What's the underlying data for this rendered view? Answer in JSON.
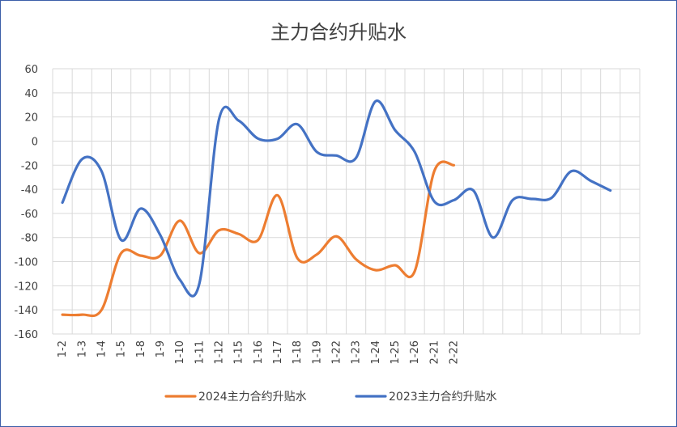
{
  "chart_data": {
    "type": "line",
    "title": "主力合约升贴水",
    "xlabel": "",
    "ylabel": "",
    "categories": [
      "1-2",
      "1-3",
      "1-4",
      "1-5",
      "1-8",
      "1-9",
      "1-10",
      "1-11",
      "1-12",
      "1-15",
      "1-16",
      "1-17",
      "1-18",
      "1-19",
      "1-22",
      "1-23",
      "1-24",
      "1-25",
      "1-26",
      "2-21",
      "2-22",
      "",
      "",
      "",
      "",
      "",
      "",
      "",
      "",
      ""
    ],
    "ylim": [
      -160,
      60
    ],
    "yticks": [
      -160,
      -140,
      -120,
      -100,
      -80,
      -60,
      -40,
      -20,
      0,
      20,
      40,
      60
    ],
    "grid": true,
    "legend": "bottom",
    "series": [
      {
        "name": "2024主力合约升贴水",
        "color": "#ED7D31",
        "values": [
          -144,
          -144,
          -140,
          -93,
          -95,
          -95,
          -66,
          -93,
          -74,
          -77,
          -82,
          -45,
          -97,
          -94,
          -79,
          -98,
          -107,
          -103,
          -108,
          -25,
          -20,
          null,
          null,
          null,
          null,
          null,
          null,
          null,
          null,
          null
        ]
      },
      {
        "name": "2023主力合约升贴水",
        "color": "#4472C4",
        "values": [
          -51,
          -15,
          -25,
          -82,
          -56,
          -78,
          -115,
          -118,
          18,
          17,
          2,
          2,
          14,
          -9,
          -12,
          -14,
          33,
          9,
          -9,
          -50,
          -49,
          -41,
          -80,
          -49,
          -48,
          -47,
          -25,
          -33,
          -41,
          null
        ]
      }
    ]
  }
}
